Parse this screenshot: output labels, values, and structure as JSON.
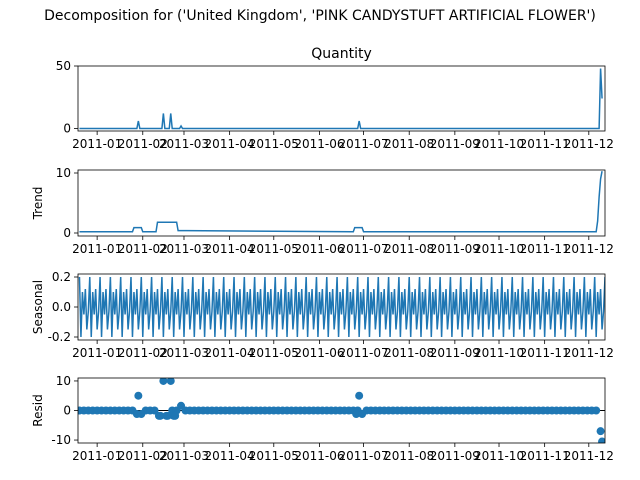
{
  "title": "Decomposition for ('United Kingdom', 'PINK CANDYSTUFT ARTIFICIAL FLOWER')",
  "colors": {
    "line": "#1f77b4",
    "axis": "#000000"
  },
  "x_tick_labels": [
    "2011-01",
    "2011-02",
    "2011-03",
    "2011-04",
    "2011-05",
    "2011-06",
    "2011-07",
    "2011-08",
    "2011-09",
    "2011-10",
    "2011-11",
    "2011-12"
  ],
  "chart_data": [
    {
      "type": "line",
      "title": "Quantity",
      "ylabel": "",
      "xlim": [
        "2010-12-19",
        "2011-12-12"
      ],
      "ylim": [
        -2,
        50
      ],
      "yticks": [
        0,
        50
      ],
      "x": [
        "2010-12-20",
        "2011-01-28",
        "2011-01-29",
        "2011-01-30",
        "2011-02-14",
        "2011-02-15",
        "2011-02-16",
        "2011-02-19",
        "2011-02-20",
        "2011-02-21",
        "2011-02-26",
        "2011-02-27",
        "2011-02-28",
        "2011-06-27",
        "2011-06-28",
        "2011-06-29",
        "2011-12-08",
        "2011-12-09",
        "2011-12-10"
      ],
      "y": [
        0,
        0,
        6,
        0,
        0,
        12,
        0,
        0,
        12,
        0,
        0,
        2,
        0,
        0,
        6,
        0,
        0,
        48,
        24
      ]
    },
    {
      "type": "line",
      "title": "",
      "ylabel": "Trend",
      "xlim": [
        "2010-12-19",
        "2011-12-12"
      ],
      "ylim": [
        -0.5,
        10.5
      ],
      "yticks": [
        0,
        10
      ],
      "x": [
        "2010-12-20",
        "2011-01-25",
        "2011-01-26",
        "2011-01-31",
        "2011-02-01",
        "2011-02-10",
        "2011-02-11",
        "2011-02-24",
        "2011-02-25",
        "2011-03-03",
        "2011-06-24",
        "2011-06-25",
        "2011-06-30",
        "2011-07-01",
        "2011-12-06",
        "2011-12-07",
        "2011-12-08",
        "2011-12-09",
        "2011-12-10"
      ],
      "y": [
        0.2,
        0.2,
        0.9,
        0.9,
        0.2,
        0.2,
        1.8,
        1.8,
        0.4,
        0.4,
        0.2,
        0.9,
        0.9,
        0.2,
        0.2,
        2,
        6,
        9,
        10.3
      ]
    },
    {
      "type": "line",
      "title": "",
      "ylabel": "Seasonal",
      "xlim": [
        "2010-12-19",
        "2011-12-12"
      ],
      "ylim": [
        -0.22,
        0.22
      ],
      "yticks": [
        -0.2,
        0.0,
        0.2
      ],
      "x_start": "2010-12-20",
      "period_days": 7,
      "pattern": [
        0.2,
        -0.2,
        0.1,
        -0.05,
        0.12,
        -0.15,
        -0.03
      ]
    },
    {
      "type": "scatter",
      "title": "",
      "ylabel": "Resid",
      "xlim": [
        "2010-12-19",
        "2011-12-12"
      ],
      "ylim": [
        -11,
        11
      ],
      "yticks": [
        -10,
        0,
        10
      ],
      "baseline": 0,
      "x_start": "2010-12-20",
      "x_end": "2011-12-10",
      "step_days": 3,
      "default_y": 0,
      "points": [
        {
          "x": "2011-01-29",
          "y": 5
        },
        {
          "x": "2011-02-15",
          "y": 10
        },
        {
          "x": "2011-02-20",
          "y": 10
        },
        {
          "x": "2011-02-27",
          "y": 1.6
        },
        {
          "x": "2011-06-28",
          "y": 5
        },
        {
          "x": "2011-12-09",
          "y": -7
        },
        {
          "x": "2011-12-10",
          "y": -10.5
        }
      ],
      "dips": [
        {
          "x": "2011-01-28",
          "y": -1.2
        },
        {
          "x": "2011-01-31",
          "y": -1.2
        },
        {
          "x": "2011-02-12",
          "y": -1.8
        },
        {
          "x": "2011-02-13",
          "y": -1.8
        },
        {
          "x": "2011-02-17",
          "y": -1.8
        },
        {
          "x": "2011-02-18",
          "y": -1.8
        },
        {
          "x": "2011-02-22",
          "y": -1.8
        },
        {
          "x": "2011-02-23",
          "y": -1.8
        },
        {
          "x": "2011-06-26",
          "y": -1.2
        },
        {
          "x": "2011-06-30",
          "y": -1.2
        }
      ]
    }
  ]
}
